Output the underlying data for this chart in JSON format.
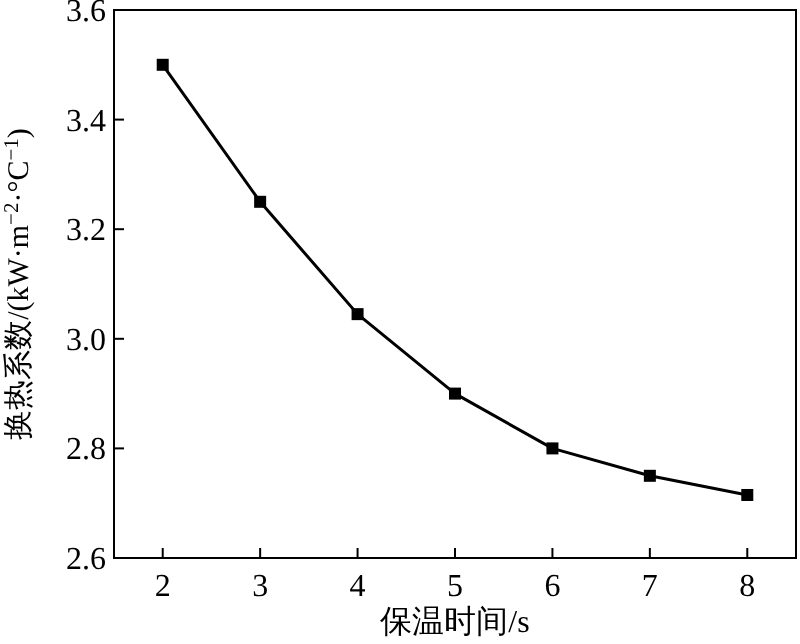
{
  "chart_data": {
    "type": "line",
    "xlabel": "保温时间/s",
    "ylabel": "换热系数/(kW·m$^{−2}$·°C$^{−1}$)",
    "x": [
      2,
      3,
      4,
      5,
      6,
      7,
      8
    ],
    "series": [
      {
        "color": "#000000",
        "values": [
          3.5,
          3.25,
          3.045,
          2.9,
          2.8,
          2.75,
          2.715
        ]
      }
    ],
    "xlim": [
      1.5,
      8.5
    ],
    "xticks": [
      2,
      3,
      4,
      5,
      6,
      7,
      8
    ],
    "ylim": [
      2.6,
      3.6
    ],
    "yticks": [
      2.6,
      2.8,
      {
        "value": 3,
        "label": "3.0"
      },
      3.2,
      3.4,
      3.6
    ],
    "marker": "square",
    "line_style": "solid"
  }
}
